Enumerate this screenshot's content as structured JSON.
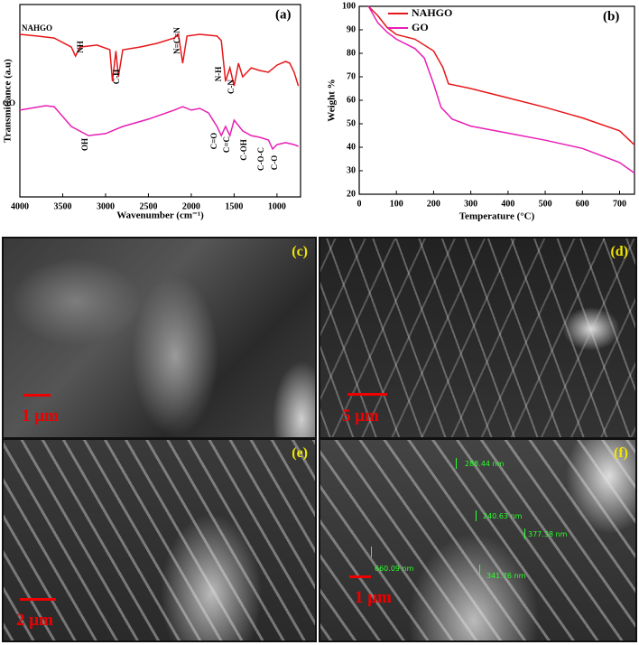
{
  "chart_data": [
    {
      "type": "line",
      "panel": "(a)",
      "xlabel": "Wavenumber (cm⁻¹)",
      "ylabel": "Transmittance (a.u)",
      "xlim": [
        4000,
        725
      ],
      "ylim": [
        0,
        100
      ],
      "xticks": [
        4000,
        3500,
        3000,
        2500,
        2000,
        1500,
        1000
      ],
      "series": [
        {
          "name": "NAHGO",
          "color": "#e8171b",
          "x": [
            4000,
            3800,
            3600,
            3400,
            3350,
            3300,
            3100,
            2950,
            2920,
            2880,
            2850,
            2800,
            2600,
            2400,
            2200,
            2150,
            2100,
            2050,
            1900,
            1700,
            1650,
            1600,
            1550,
            1500,
            1450,
            1400,
            1300,
            1200,
            1100,
            1000,
            900,
            850,
            800,
            750
          ],
          "values": [
            84.5,
            83.6,
            82.6,
            77.9,
            73.2,
            77.9,
            78.9,
            76.5,
            60.1,
            75.8,
            62.4,
            76.5,
            77.9,
            79.8,
            82.6,
            84.5,
            69.5,
            83.6,
            84.5,
            83.6,
            81.2,
            60.1,
            67.1,
            57.7,
            69.5,
            62.4,
            67.1,
            65.7,
            64.8,
            68.5,
            70.4,
            69.5,
            64.8,
            57.7
          ]
        },
        {
          "name": "GO",
          "color": "#e81fb4",
          "x": [
            4000,
            3700,
            3600,
            3400,
            3200,
            3000,
            2800,
            2500,
            2200,
            2100,
            2000,
            1900,
            1800,
            1700,
            1650,
            1600,
            1550,
            1500,
            1400,
            1300,
            1200,
            1100,
            1050,
            1000,
            900,
            800,
            750
          ],
          "values": [
            45.1,
            47.4,
            46.9,
            36.6,
            31.9,
            32.9,
            36.6,
            40.4,
            45.1,
            46.9,
            45.1,
            46.0,
            43.7,
            36.6,
            31.9,
            36.6,
            31.9,
            39.9,
            34.3,
            31.9,
            31.0,
            29.6,
            24.9,
            27.2,
            28.2,
            27.2,
            26.3
          ]
        }
      ],
      "annotations": [
        "NH",
        "C-H",
        "N=C=N",
        "N-H",
        "C-N",
        "OH",
        "C=O",
        "C=C",
        "C-OH",
        "C-O-C",
        "C-O"
      ]
    },
    {
      "type": "line",
      "panel": "(b)",
      "xlabel": "Temperature (°C)",
      "ylabel": "Weight %",
      "xlim": [
        0,
        740
      ],
      "ylim": [
        20,
        100
      ],
      "xticks": [
        0,
        100,
        200,
        300,
        400,
        500,
        600,
        700
      ],
      "yticks": [
        20,
        30,
        40,
        50,
        60,
        70,
        80,
        90,
        100
      ],
      "legend": "top-center",
      "series": [
        {
          "name": "NAHGO",
          "color": "#e8171b",
          "x": [
            25,
            50,
            75,
            100,
            150,
            200,
            225,
            240,
            300,
            400,
            500,
            600,
            700,
            740
          ],
          "values": [
            100,
            96,
            91,
            88,
            86,
            81,
            74,
            67,
            65,
            61,
            57,
            52.5,
            47,
            41
          ]
        },
        {
          "name": "GO",
          "color": "#e81fb4",
          "x": [
            25,
            50,
            75,
            100,
            150,
            175,
            200,
            220,
            250,
            300,
            400,
            500,
            600,
            700,
            740
          ],
          "values": [
            100,
            93,
            89,
            86,
            82,
            78,
            67,
            57,
            52,
            49,
            46,
            43,
            39.5,
            33.5,
            29
          ]
        }
      ]
    }
  ],
  "images": [
    {
      "panel": "(c)",
      "scale": "1 μm"
    },
    {
      "panel": "(d)",
      "scale": "5 μm"
    },
    {
      "panel": "(e)",
      "scale": "2 μm"
    },
    {
      "panel": "(f)",
      "scale": "1 μm",
      "measurements": [
        "288.44 nm",
        "240.63 nm",
        "377.38 nm",
        "660.09 nm",
        "341.76 nm"
      ]
    }
  ]
}
